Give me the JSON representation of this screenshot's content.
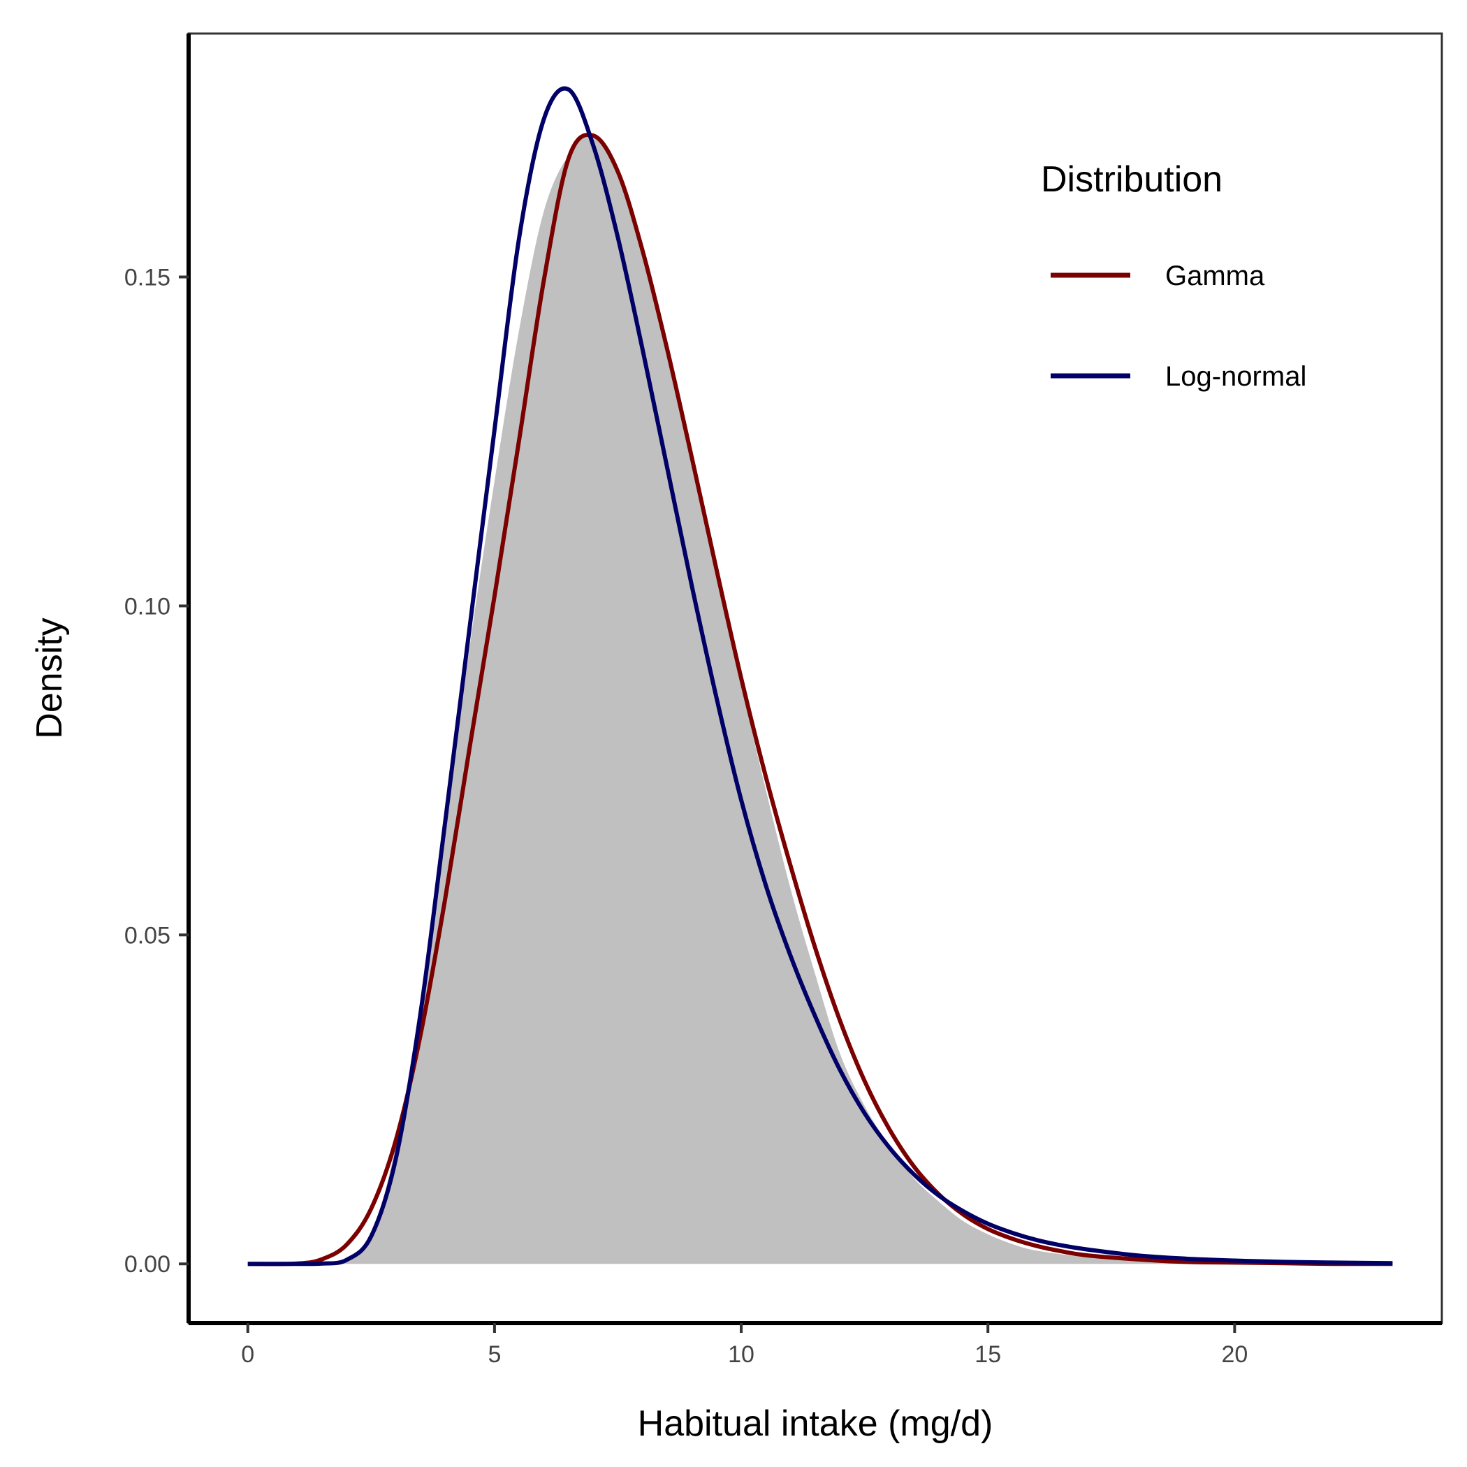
{
  "chart_data": {
    "type": "line",
    "xlabel": "Habitual intake (mg/d)",
    "ylabel": "Density",
    "xlim": [
      -1.2,
      24.2
    ],
    "ylim": [
      -0.009,
      0.187
    ],
    "xticks": [
      0,
      5,
      10,
      15,
      20
    ],
    "xtick_labels": [
      "0",
      "5",
      "10",
      "15",
      "20"
    ],
    "yticks": [
      0.0,
      0.05,
      0.1,
      0.15
    ],
    "ytick_labels": [
      "0.00",
      "0.05",
      "0.10",
      "0.15"
    ],
    "grid": false,
    "legend": {
      "title": "Distribution",
      "position": "top-right"
    },
    "area": {
      "name": "",
      "fill": "#c0c0c0",
      "x": [
        0,
        1,
        1.5,
        2,
        2.5,
        3,
        3.5,
        4,
        4.5,
        5,
        5.5,
        6,
        6.5,
        7,
        7.5,
        8,
        8.5,
        9,
        9.5,
        10,
        10.5,
        11,
        11.5,
        12,
        12.5,
        13,
        13.5,
        14,
        14.5,
        15,
        15.5,
        16,
        17,
        18,
        19,
        20,
        21,
        22,
        23.2
      ],
      "y": [
        0,
        0,
        0.0001,
        0.0006,
        0.0045,
        0.018,
        0.04,
        0.066,
        0.094,
        0.119,
        0.142,
        0.16,
        0.1685,
        0.1715,
        0.166,
        0.153,
        0.138,
        0.122,
        0.105,
        0.088,
        0.072,
        0.057,
        0.044,
        0.032,
        0.024,
        0.018,
        0.013,
        0.0095,
        0.0065,
        0.0045,
        0.003,
        0.002,
        0.001,
        0.0004,
        0.0002,
        0.0001,
        0,
        0,
        0
      ]
    },
    "series": [
      {
        "name": "Gamma",
        "color": "#7b0000",
        "x": [
          0,
          1,
          1.5,
          2,
          2.5,
          3,
          3.5,
          4,
          4.5,
          5,
          5.5,
          6,
          6.5,
          7,
          7.5,
          8,
          8.5,
          9,
          9.5,
          10,
          10.5,
          11,
          11.5,
          12,
          12.5,
          13,
          13.5,
          14,
          14.5,
          15,
          15.5,
          16,
          16.5,
          17,
          18,
          19,
          20,
          21,
          22,
          23.2
        ],
        "y": [
          0,
          5e-05,
          0.0007,
          0.0029,
          0.0084,
          0.0188,
          0.0348,
          0.0555,
          0.0787,
          0.1015,
          0.1253,
          0.1495,
          0.168,
          0.1715,
          0.166,
          0.154,
          0.139,
          0.1225,
          0.1055,
          0.089,
          0.074,
          0.0605,
          0.048,
          0.037,
          0.0278,
          0.0205,
          0.0148,
          0.0106,
          0.0075,
          0.0053,
          0.0038,
          0.0027,
          0.0019,
          0.0013,
          0.0007,
          0.0003,
          0.0002,
          0.0001,
          0,
          0
        ]
      },
      {
        "name": "Log-normal",
        "color": "#000066",
        "x": [
          0,
          1,
          1.5,
          2,
          2.5,
          3,
          3.5,
          4,
          4.5,
          5,
          5.5,
          6,
          6.5,
          7,
          7.5,
          8,
          8.5,
          9,
          9.5,
          10,
          10.5,
          11,
          11.5,
          12,
          12.5,
          13,
          13.5,
          14,
          14.5,
          15,
          15.5,
          16,
          16.5,
          17,
          18,
          19,
          20,
          21,
          22,
          23.2
        ],
        "y": [
          0,
          0,
          5e-05,
          0.0006,
          0.0042,
          0.016,
          0.0381,
          0.0672,
          0.097,
          0.1268,
          0.156,
          0.174,
          0.1785,
          0.17,
          0.156,
          0.139,
          0.121,
          0.103,
          0.086,
          0.0705,
          0.0575,
          0.0468,
          0.0376,
          0.0295,
          0.0229,
          0.0177,
          0.0136,
          0.0104,
          0.008,
          0.0061,
          0.0047,
          0.0036,
          0.0028,
          0.0022,
          0.0013,
          0.0008,
          0.0005,
          0.0003,
          0.0002,
          0.0001
        ]
      }
    ]
  }
}
